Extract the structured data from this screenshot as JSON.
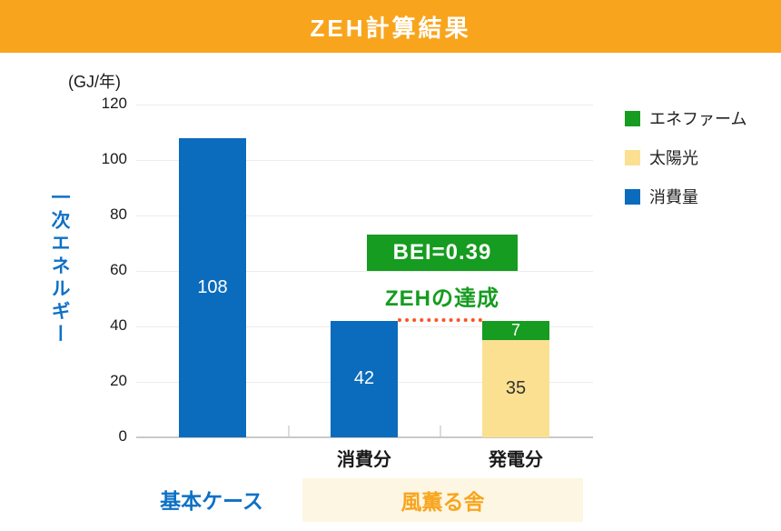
{
  "header": {
    "title": "ZEH計算結果"
  },
  "colors": {
    "orange": "#F8A51D",
    "cream": "#FDF6E3",
    "bar_blue": "#0B6BBC",
    "text_blue": "#0E71C5",
    "green": "#169C20",
    "solar_yellow": "#FBE091",
    "dotted_line": "#FF5221",
    "grid": "#ECECEC",
    "axis": "#C9C9C9",
    "text_dark": "#1A1A1A"
  },
  "chart_data": {
    "type": "bar",
    "title": "ZEH計算結果",
    "unit_label": "(GJ/年)",
    "y_axis_title": "一次エネルギー",
    "ylabel": "一次エネルギー (GJ/年)",
    "ylim": [
      0,
      120
    ],
    "yticks": [
      0,
      20,
      40,
      60,
      80,
      100,
      120
    ],
    "grid": true,
    "categories": [
      "基本ケース",
      "消費分",
      "発電分"
    ],
    "series": [
      {
        "name": "消費量",
        "color": "#0B6BBC",
        "values": [
          108,
          42,
          0
        ]
      },
      {
        "name": "太陽光",
        "color": "#FBE091",
        "values": [
          0,
          0,
          35
        ]
      },
      {
        "name": "エネファーム",
        "color": "#169C20",
        "values": [
          0,
          0,
          7
        ]
      }
    ],
    "legend": [
      {
        "label": "エネファーム",
        "color": "#169C20"
      },
      {
        "label": "太陽光",
        "color": "#FBE091"
      },
      {
        "label": "消費量",
        "color": "#0B6BBC"
      }
    ],
    "legend_position": "right-top",
    "annotations": {
      "bei_badge": "BEI=0.39",
      "zeh_text": "ZEHの達成",
      "dotted_line_y": 42
    },
    "x_tick_labels": [
      "消費分",
      "発電分"
    ],
    "group_labels": [
      {
        "label": "基本ケース"
      },
      {
        "label": "風薫る舎"
      }
    ]
  }
}
